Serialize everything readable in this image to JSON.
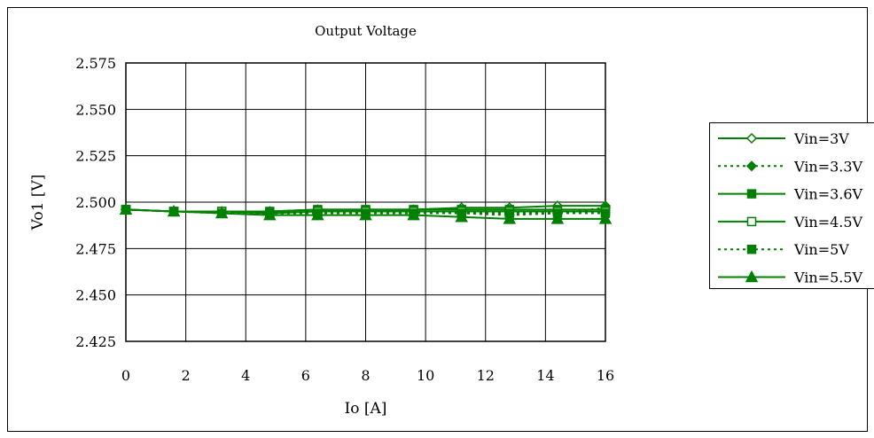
{
  "chart_data": {
    "type": "line",
    "title": "Output Voltage",
    "xlabel": "Io [A]",
    "ylabel": "Vo1 [V]",
    "xlim": [
      0,
      16
    ],
    "ylim": [
      2.425,
      2.575
    ],
    "xticks": [
      "0",
      "2",
      "4",
      "6",
      "8",
      "10",
      "12",
      "14",
      "16"
    ],
    "yticks": [
      "2.425",
      "2.450",
      "2.475",
      "2.500",
      "2.525",
      "2.550",
      "2.575"
    ],
    "grid": true,
    "legend_position": "right",
    "line_color": "#008000",
    "x": [
      0,
      1.6,
      3.2,
      4.8,
      6.4,
      8.0,
      9.6,
      11.2,
      12.8,
      14.4,
      16.0
    ],
    "series": [
      {
        "name": "Vin=3V",
        "marker": "diamond-open",
        "dash": "solid",
        "values": [
          2.496,
          2.495,
          2.495,
          2.495,
          2.496,
          2.496,
          2.496,
          2.497,
          2.497,
          2.498,
          2.498
        ]
      },
      {
        "name": "Vin=3.3V",
        "marker": "diamond-filled",
        "dash": "dotted",
        "values": [
          2.496,
          2.495,
          2.495,
          2.495,
          2.495,
          2.495,
          2.495,
          2.494,
          2.493,
          2.494,
          2.497
        ]
      },
      {
        "name": "Vin=3.6V",
        "marker": "square-filled",
        "dash": "solid",
        "values": [
          2.496,
          2.495,
          2.495,
          2.495,
          2.496,
          2.496,
          2.496,
          2.496,
          2.496,
          2.496,
          2.496
        ]
      },
      {
        "name": "Vin=4.5V",
        "marker": "square-open",
        "dash": "solid",
        "values": [
          2.496,
          2.495,
          2.495,
          2.494,
          2.495,
          2.495,
          2.495,
          2.495,
          2.495,
          2.495,
          2.495
        ]
      },
      {
        "name": "Vin=5V",
        "marker": "square-filled",
        "dash": "dotted",
        "values": [
          2.496,
          2.495,
          2.494,
          2.494,
          2.494,
          2.494,
          2.494,
          2.494,
          2.494,
          2.494,
          2.494
        ]
      },
      {
        "name": "Vin=5.5V",
        "marker": "triangle-filled",
        "dash": "solid",
        "values": [
          2.496,
          2.495,
          2.494,
          2.493,
          2.493,
          2.493,
          2.493,
          2.492,
          2.491,
          2.491,
          2.491
        ]
      }
    ]
  }
}
